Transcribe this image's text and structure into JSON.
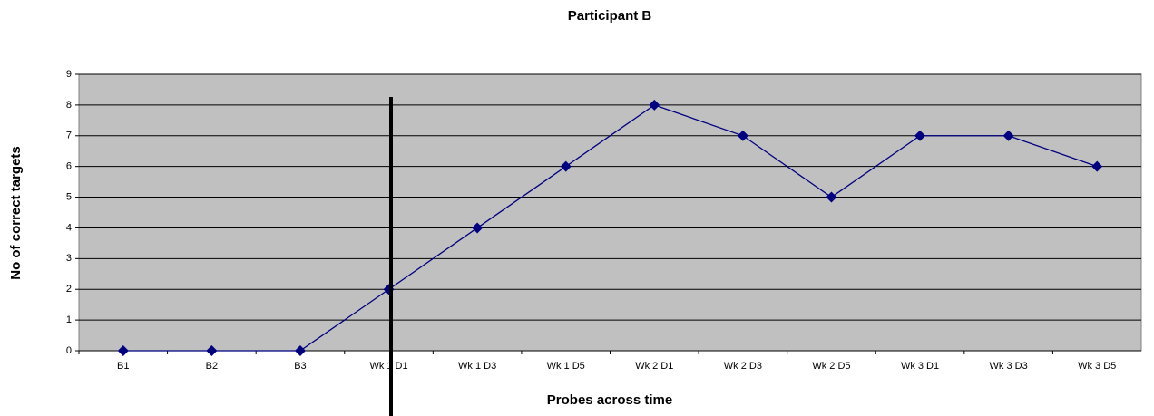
{
  "chart_data": {
    "type": "line",
    "title": "Participant B",
    "x_label": "Probes across time",
    "y_label": "No of correct targets",
    "categories": [
      "B1",
      "B2",
      "B3",
      "Wk 1 D1",
      "Wk 1 D3",
      "Wk 1 D5",
      "Wk 2 D1",
      "Wk 2 D3",
      "Wk 2 D5",
      "Wk 3 D1",
      "Wk 3 D3",
      "Wk 3 D5"
    ],
    "series": [
      {
        "name": "Participant B",
        "color": "#000080",
        "values": [
          0,
          0,
          0,
          2,
          4,
          6,
          8,
          7,
          5,
          7,
          7,
          6
        ]
      }
    ],
    "ylim": [
      0,
      9
    ],
    "yticks": [
      0,
      1,
      2,
      3,
      4,
      5,
      6,
      7,
      8,
      9
    ],
    "grid": true
  }
}
